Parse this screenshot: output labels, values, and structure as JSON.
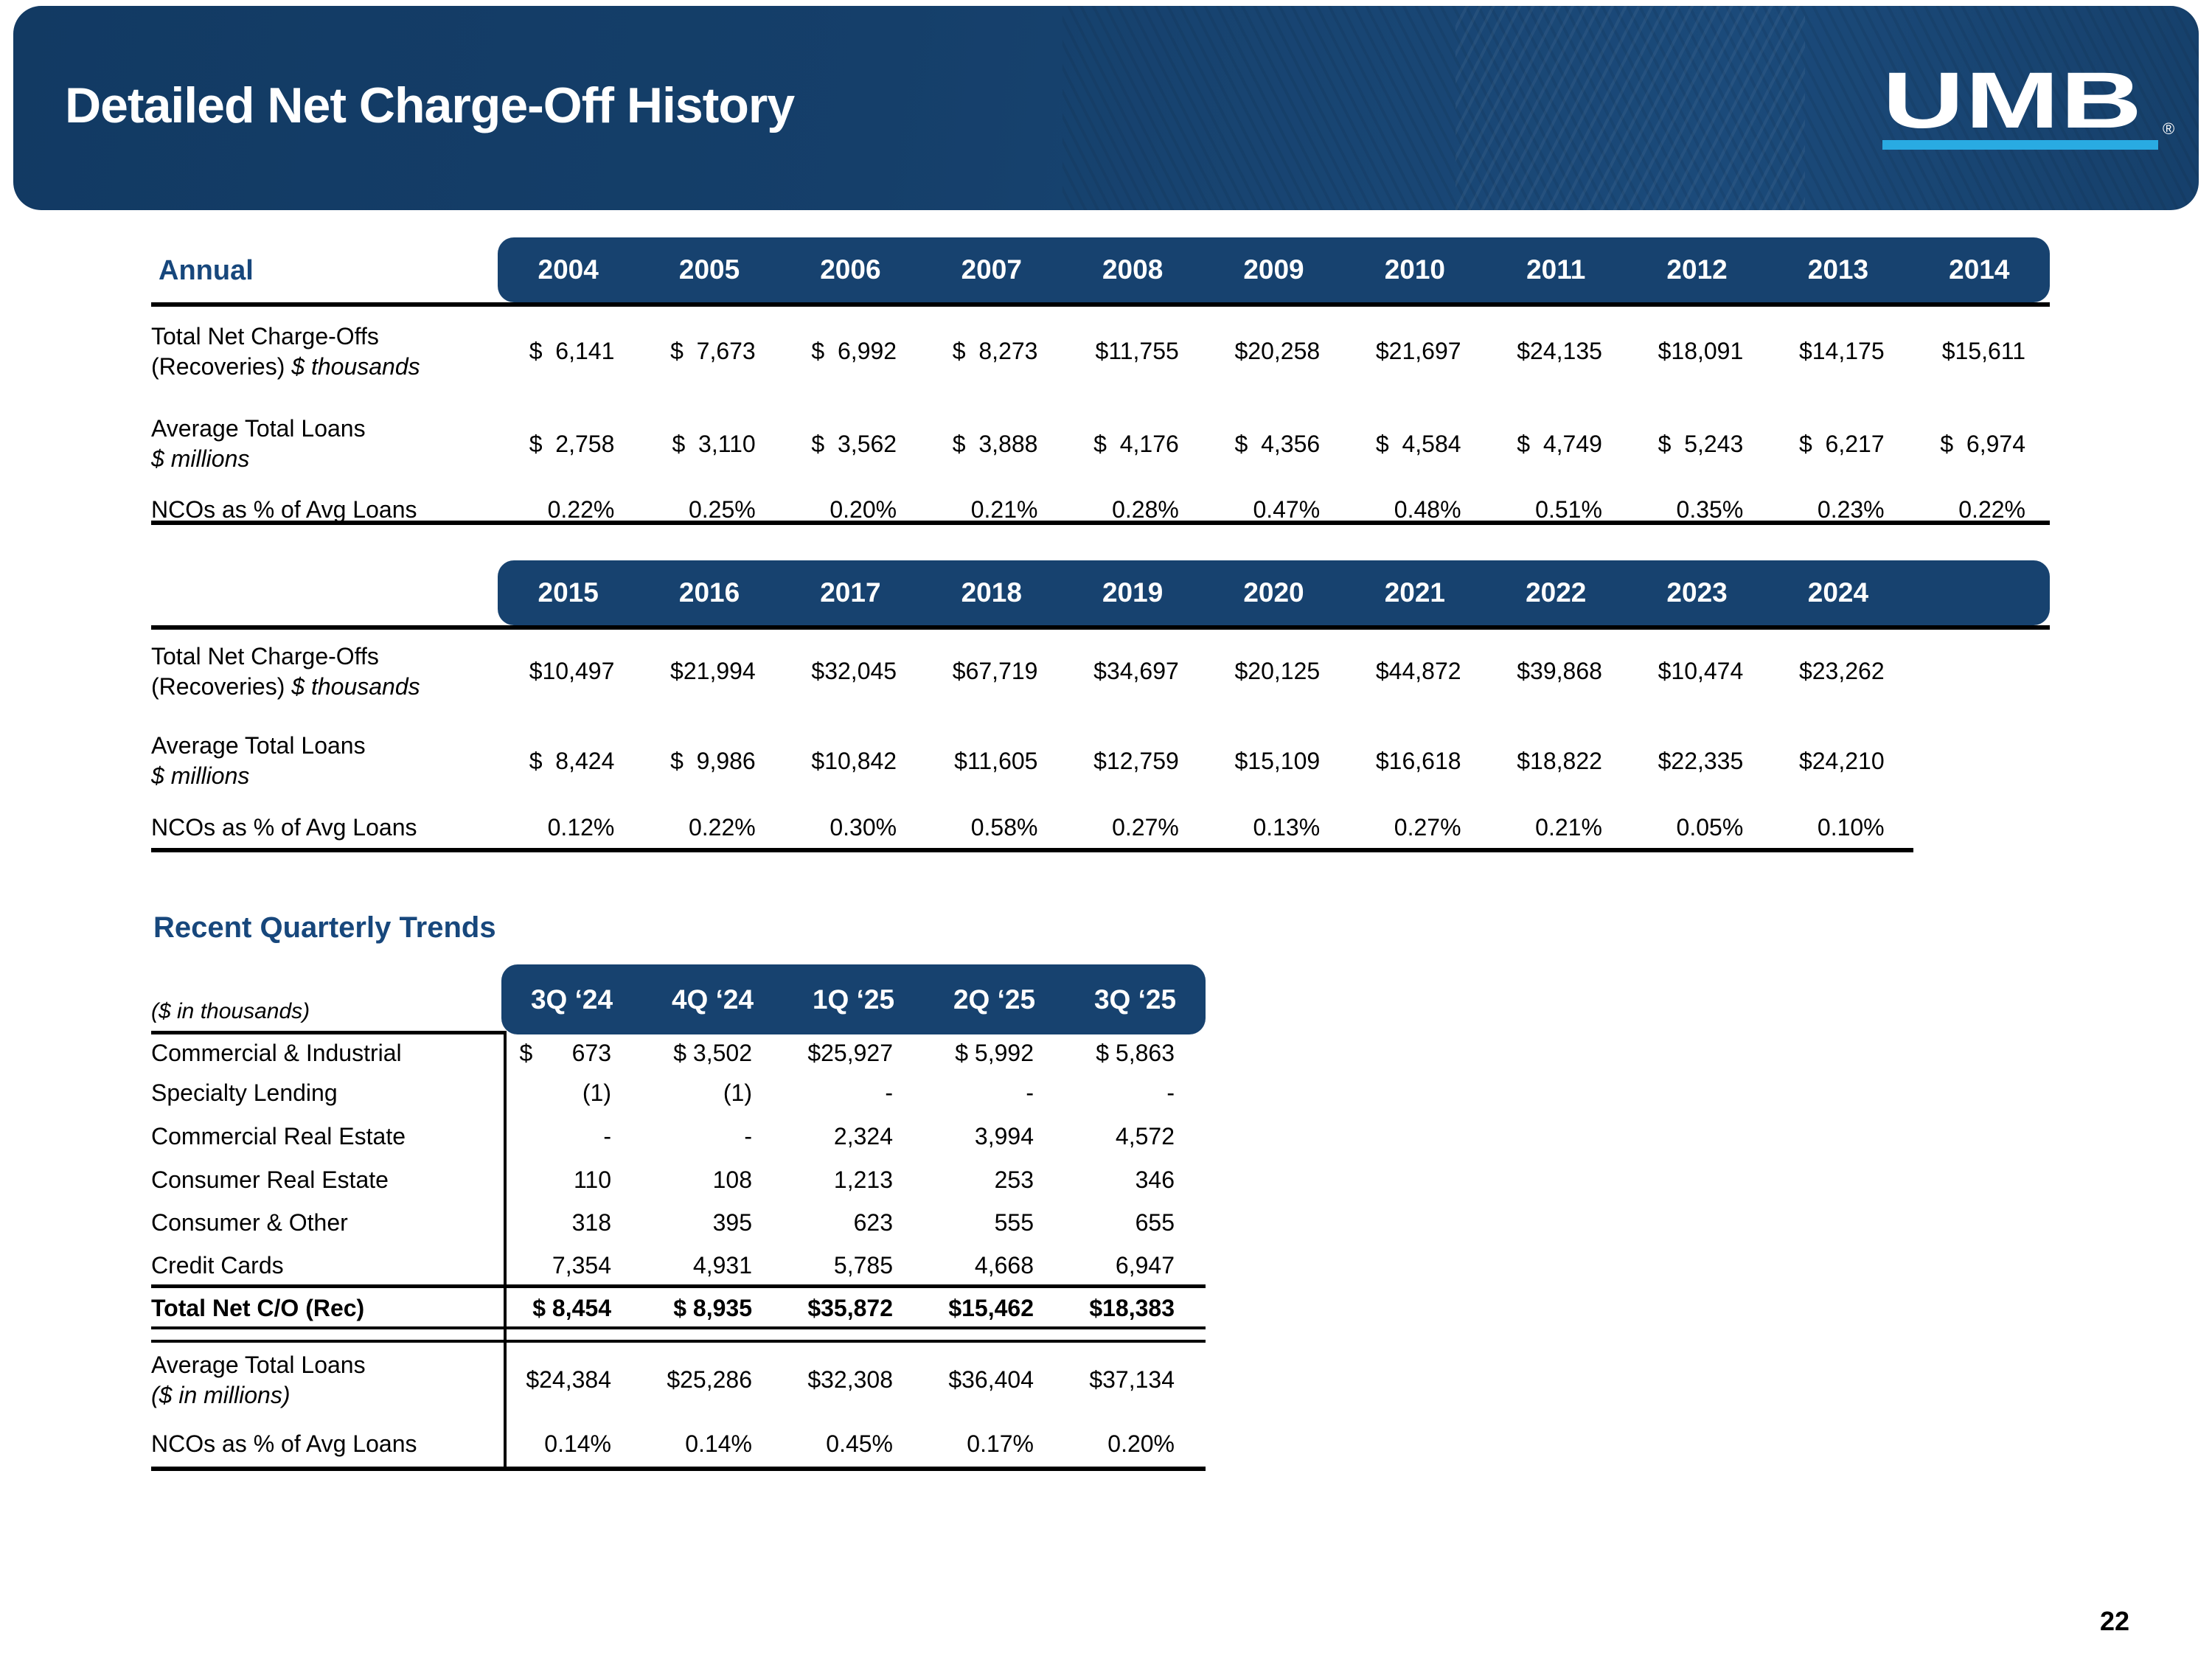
{
  "slide": {
    "title": "Detailed Net Charge-Off History",
    "page_number": "22"
  },
  "logo": {
    "text": "UMB",
    "registered": "®"
  },
  "colors": {
    "navy": "#17426f",
    "accent_cyan": "#29abe2",
    "heading_text": "#17477c"
  },
  "annual": {
    "heading": "Annual",
    "labels": {
      "nco_l1": "Total Net Charge-Offs",
      "nco_l2": "(Recoveries)",
      "nco_l2i": "$ thousands",
      "atl_l1": "Average Total Loans",
      "atl_l2i": "$ millions",
      "pct": "NCOs as % of Avg Loans"
    },
    "t1": {
      "years": [
        "2004",
        "2005",
        "2006",
        "2007",
        "2008",
        "2009",
        "2010",
        "2011",
        "2012",
        "2013",
        "2014"
      ],
      "nco": [
        "$  6,141",
        "$  7,673",
        "$  6,992",
        "$  8,273",
        "$11,755",
        "$20,258",
        "$21,697",
        "$24,135",
        "$18,091",
        "$14,175",
        "$15,611"
      ],
      "atl": [
        "$  2,758",
        "$  3,110",
        "$  3,562",
        "$  3,888",
        "$  4,176",
        "$  4,356",
        "$  4,584",
        "$  4,749",
        "$  5,243",
        "$  6,217",
        "$  6,974"
      ],
      "pct": [
        "0.22%",
        "0.25%",
        "0.20%",
        "0.21%",
        "0.28%",
        "0.47%",
        "0.48%",
        "0.51%",
        "0.35%",
        "0.23%",
        "0.22%"
      ]
    },
    "t2": {
      "years": [
        "2015",
        "2016",
        "2017",
        "2018",
        "2019",
        "2020",
        "2021",
        "2022",
        "2023",
        "2024"
      ],
      "nco": [
        "$10,497",
        "$21,994",
        "$32,045",
        "$67,719",
        "$34,697",
        "$20,125",
        "$44,872",
        "$39,868",
        "$10,474",
        "$23,262"
      ],
      "atl": [
        "$  8,424",
        "$  9,986",
        "$10,842",
        "$11,605",
        "$12,759",
        "$15,109",
        "$16,618",
        "$18,822",
        "$22,335",
        "$24,210"
      ],
      "pct": [
        "0.12%",
        "0.22%",
        "0.30%",
        "0.58%",
        "0.27%",
        "0.13%",
        "0.27%",
        "0.21%",
        "0.05%",
        "0.10%"
      ]
    }
  },
  "quarterly": {
    "heading": "Recent Quarterly Trends",
    "units": "($ in thousands)",
    "columns": [
      "3Q ‘24",
      "4Q ‘24",
      "1Q ‘25",
      "2Q ‘25",
      "3Q ‘25"
    ],
    "rows": [
      {
        "label": "Commercial & Industrial",
        "v": [
          "$      673",
          "$ 3,502",
          "$25,927",
          "$ 5,992",
          "$ 5,863"
        ]
      },
      {
        "label": "Specialty Lending",
        "v": [
          "(1)",
          "(1)",
          "-",
          "-",
          "-"
        ]
      },
      {
        "label": "Commercial Real Estate",
        "v": [
          "-",
          "-",
          "2,324",
          "3,994",
          "4,572"
        ]
      },
      {
        "label": "Consumer Real Estate",
        "v": [
          "110",
          "108",
          "1,213",
          "253",
          "346"
        ]
      },
      {
        "label": "Consumer & Other",
        "v": [
          "318",
          "395",
          "623",
          "555",
          "655"
        ]
      },
      {
        "label": "Credit Cards",
        "v": [
          "7,354",
          "4,931",
          "5,785",
          "4,668",
          "6,947"
        ]
      }
    ],
    "total": {
      "label": "Total Net C/O (Rec)",
      "v": [
        "$ 8,454",
        "$ 8,935",
        "$35,872",
        "$15,462",
        "$18,383"
      ]
    },
    "avg": {
      "l1": "Average Total Loans",
      "l2i": "($ in millions)",
      "v": [
        "$24,384",
        "$25,286",
        "$32,308",
        "$36,404",
        "$37,134"
      ]
    },
    "pct": {
      "label": "NCOs as % of Avg Loans",
      "v": [
        "0.14%",
        "0.14%",
        "0.45%",
        "0.17%",
        "0.20%"
      ]
    }
  }
}
